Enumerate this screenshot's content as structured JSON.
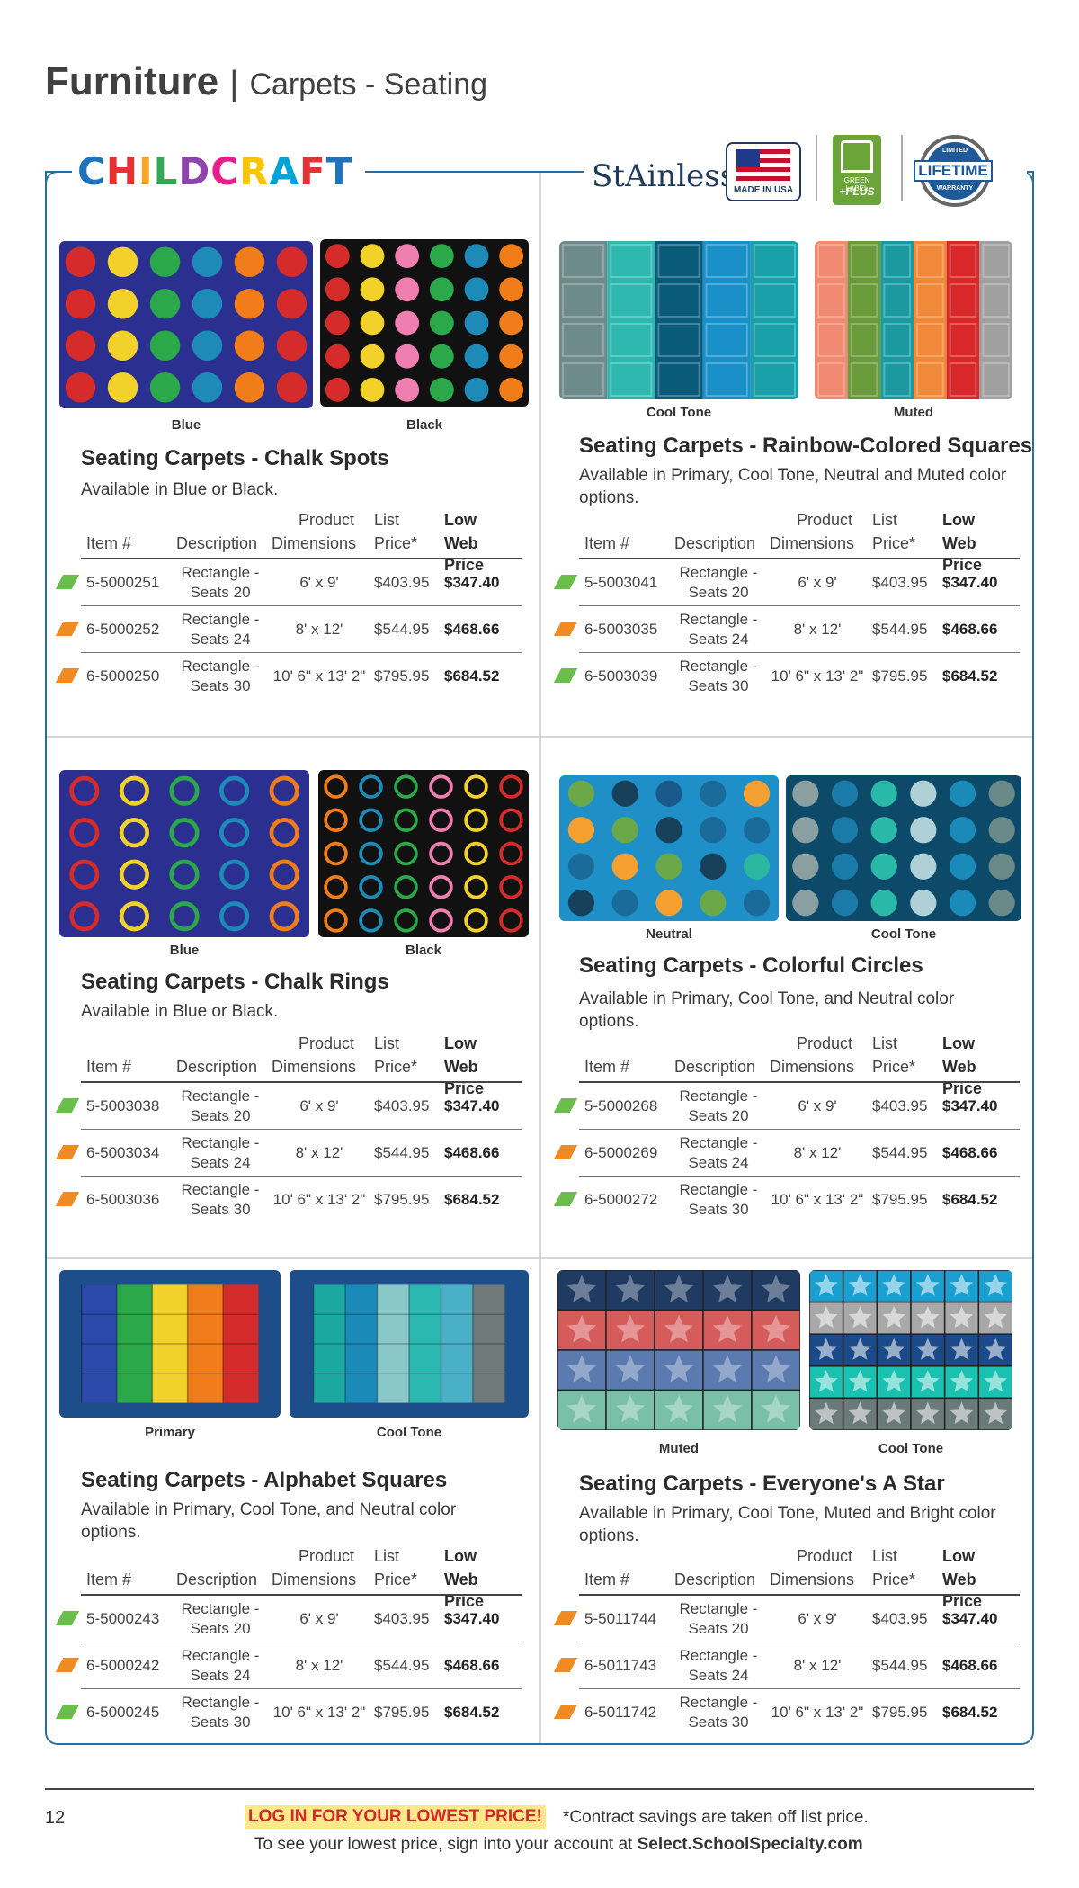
{
  "header": {
    "category": "Furniture",
    "separator": "|",
    "subcategory": "Carpets - Seating"
  },
  "brand": {
    "childcraft_letters": [
      "C",
      "H",
      "I",
      "L",
      "D",
      "C",
      "R",
      "A",
      "F",
      "T"
    ],
    "stainless": "StAinless",
    "made_in_usa": "MADE IN USA",
    "cri_label": "GREEN LABEL",
    "cri_plus": "+PLUS",
    "lifetime": "LIFETIME",
    "lifetime_top": "LIMITED",
    "lifetime_bottom": "WARRANTY"
  },
  "table_headers": {
    "item": "Item #",
    "description": "Description",
    "dims_top": "Product",
    "dims_bottom": "Dimensions",
    "list_top": "List",
    "list_bottom": "Price*",
    "web_top": "Low",
    "web_bottom": "Web Price"
  },
  "products": [
    {
      "title": "Seating Carpets - Chalk Spots",
      "description": "Available in Blue or Black.",
      "captions": [
        "Blue",
        "Black"
      ],
      "rows": [
        {
          "item": "5-5000251",
          "desc1": "Rectangle -",
          "desc2": "Seats 20",
          "dims": "6' x 9'",
          "list": "$403.95",
          "web": "$347.40",
          "flag": "green"
        },
        {
          "item": "6-5000252",
          "desc1": "Rectangle -",
          "desc2": "Seats 24",
          "dims": "8' x 12'",
          "list": "$544.95",
          "web": "$468.66",
          "flag": "orange"
        },
        {
          "item": "6-5000250",
          "desc1": "Rectangle -",
          "desc2": "Seats 30",
          "dims": "10' 6\" x 13' 2\"",
          "list": "$795.95",
          "web": "$684.52",
          "flag": "orange"
        }
      ]
    },
    {
      "title": "Seating Carpets - Rainbow-Colored Squares",
      "description": "Available in Primary, Cool Tone, Neutral and Muted color options.",
      "captions": [
        "Cool Tone",
        "Muted"
      ],
      "rows": [
        {
          "item": "5-5003041",
          "desc1": "Rectangle -",
          "desc2": "Seats 20",
          "dims": "6' x 9'",
          "list": "$403.95",
          "web": "$347.40",
          "flag": "green"
        },
        {
          "item": "6-5003035",
          "desc1": "Rectangle -",
          "desc2": "Seats 24",
          "dims": "8' x 12'",
          "list": "$544.95",
          "web": "$468.66",
          "flag": "orange"
        },
        {
          "item": "6-5003039",
          "desc1": "Rectangle -",
          "desc2": "Seats 30",
          "dims": "10' 6\" x 13' 2\"",
          "list": "$795.95",
          "web": "$684.52",
          "flag": "green"
        }
      ]
    },
    {
      "title": "Seating Carpets - Chalk Rings",
      "description": "Available in Blue or Black.",
      "captions": [
        "Blue",
        "Black"
      ],
      "rows": [
        {
          "item": "5-5003038",
          "desc1": "Rectangle -",
          "desc2": "Seats 20",
          "dims": "6' x 9'",
          "list": "$403.95",
          "web": "$347.40",
          "flag": "green"
        },
        {
          "item": "6-5003034",
          "desc1": "Rectangle -",
          "desc2": "Seats 24",
          "dims": "8' x 12'",
          "list": "$544.95",
          "web": "$468.66",
          "flag": "orange"
        },
        {
          "item": "6-5003036",
          "desc1": "Rectangle -",
          "desc2": "Seats 30",
          "dims": "10' 6\" x 13' 2\"",
          "list": "$795.95",
          "web": "$684.52",
          "flag": "orange"
        }
      ]
    },
    {
      "title": "Seating Carpets - Colorful Circles",
      "description": "Available in Primary, Cool Tone, and Neutral color options.",
      "captions": [
        "Neutral",
        "Cool Tone"
      ],
      "rows": [
        {
          "item": "5-5000268",
          "desc1": "Rectangle -",
          "desc2": "Seats 20",
          "dims": "6' x 9'",
          "list": "$403.95",
          "web": "$347.40",
          "flag": "green"
        },
        {
          "item": "6-5000269",
          "desc1": "Rectangle -",
          "desc2": "Seats 24",
          "dims": "8' x 12'",
          "list": "$544.95",
          "web": "$468.66",
          "flag": "orange"
        },
        {
          "item": "6-5000272",
          "desc1": "Rectangle -",
          "desc2": "Seats 30",
          "dims": "10' 6\" x 13' 2\"",
          "list": "$795.95",
          "web": "$684.52",
          "flag": "green"
        }
      ]
    },
    {
      "title": "Seating Carpets - Alphabet Squares",
      "description": "Available in Primary, Cool Tone, and Neutral color options.",
      "captions": [
        "Primary",
        "Cool Tone"
      ],
      "rows": [
        {
          "item": "5-5000243",
          "desc1": "Rectangle -",
          "desc2": "Seats 20",
          "dims": "6' x 9'",
          "list": "$403.95",
          "web": "$347.40",
          "flag": "green"
        },
        {
          "item": "6-5000242",
          "desc1": "Rectangle -",
          "desc2": "Seats 24",
          "dims": "8' x 12'",
          "list": "$544.95",
          "web": "$468.66",
          "flag": "orange"
        },
        {
          "item": "6-5000245",
          "desc1": "Rectangle -",
          "desc2": "Seats 30",
          "dims": "10' 6\" x 13' 2\"",
          "list": "$795.95",
          "web": "$684.52",
          "flag": "green"
        }
      ]
    },
    {
      "title": "Seating Carpets - Everyone's A Star",
      "description": "Available in Primary, Cool Tone, Muted and Bright color options.",
      "captions": [
        "Muted",
        "Cool Tone"
      ],
      "rows": [
        {
          "item": "5-5011744",
          "desc1": "Rectangle -",
          "desc2": "Seats 20",
          "dims": "6' x 9'",
          "list": "$403.95",
          "web": "$347.40",
          "flag": "orange"
        },
        {
          "item": "6-5011743",
          "desc1": "Rectangle -",
          "desc2": "Seats 24",
          "dims": "8' x 12'",
          "list": "$544.95",
          "web": "$468.66",
          "flag": "orange"
        },
        {
          "item": "6-5011742",
          "desc1": "Rectangle -",
          "desc2": "Seats 30",
          "dims": "10' 6\" x 13' 2\"",
          "list": "$795.95",
          "web": "$684.52",
          "flag": "orange"
        }
      ]
    }
  ],
  "footer": {
    "page_number": "12",
    "cta": "LOG IN FOR YOUR LOWEST PRICE!",
    "note": "*Contract savings are taken off list price.",
    "line2_prefix": "To see your lowest price, sign into your account at",
    "line2_url": "Select.SchoolSpecialty.com"
  },
  "colors": {
    "frame": "#2a6f9a",
    "flag_green": "#6abf4b",
    "flag_orange": "#f08a24",
    "cta_bg": "#fde98a",
    "cta_text": "#d0282e"
  }
}
